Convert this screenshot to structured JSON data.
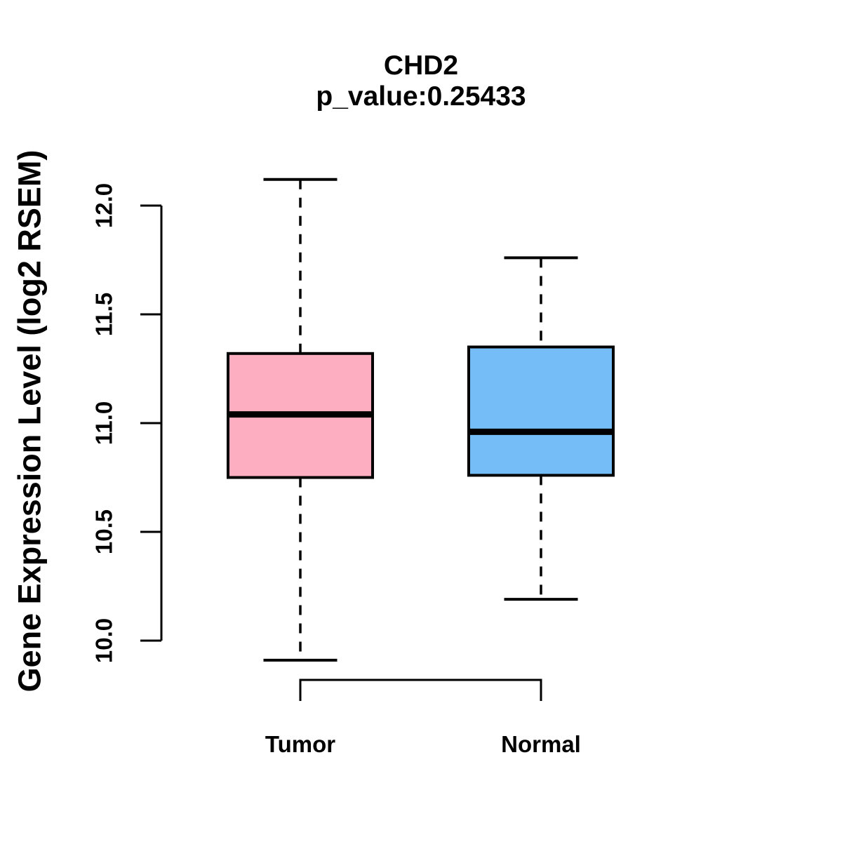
{
  "chart_data": {
    "type": "boxplot",
    "title": "CHD2",
    "subtitle": "p_value:0.25433",
    "ylabel": "Gene Expression Level (log2 RSEM)",
    "ylim": [
      10.0,
      12.0
    ],
    "yticks": [
      10.0,
      10.5,
      11.0,
      11.5,
      12.0
    ],
    "grid": false,
    "legend": "none",
    "categories": [
      "Tumor",
      "Normal"
    ],
    "series": [
      {
        "name": "Tumor",
        "color": "#FDAFC1",
        "whisker_low": 9.91,
        "q1": 10.75,
        "median": 11.04,
        "q3": 11.32,
        "whisker_high": 12.12
      },
      {
        "name": "Normal",
        "color": "#74BDF6",
        "whisker_low": 10.19,
        "q1": 10.76,
        "median": 10.96,
        "q3": 11.35,
        "whisker_high": 11.76
      }
    ],
    "comparison_bracket": {
      "between": [
        "Tumor",
        "Normal"
      ]
    },
    "line_color": "#000000"
  }
}
